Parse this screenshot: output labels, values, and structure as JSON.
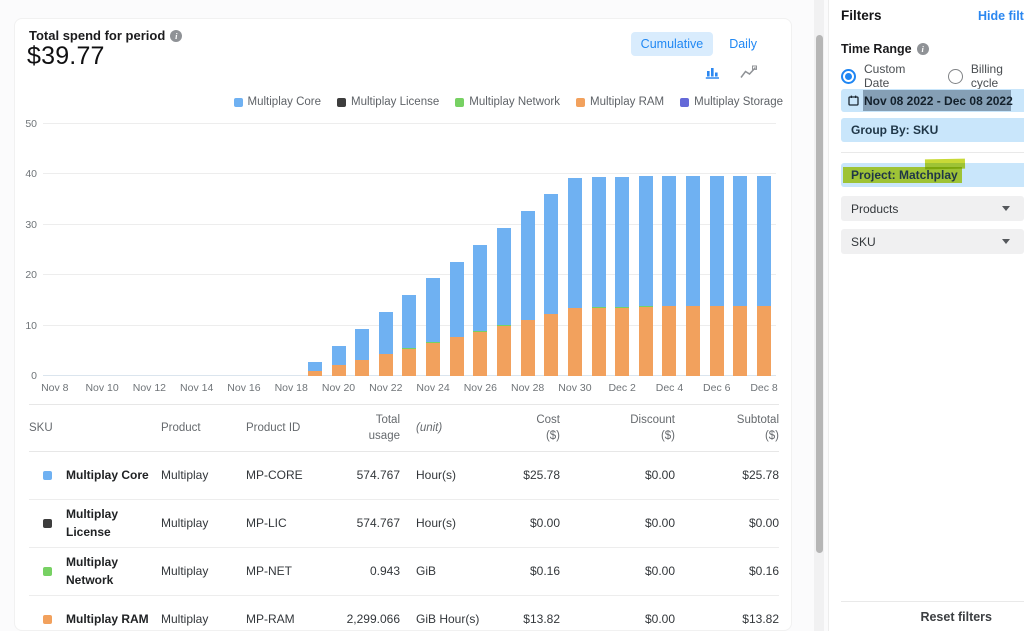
{
  "header": {
    "spend_label": "Total spend for period",
    "spend_value": "$39.77",
    "toggle_cumulative": "Cumulative",
    "toggle_daily": "Daily"
  },
  "colors": {
    "accent_blue": "#2b87f0",
    "chip_blue": "#c9e6fb",
    "toggle_bg": "#d9ecfd",
    "highlighter_yellow": "#c3d626",
    "selection_gray": "rgba(76,101,124,0.55)"
  },
  "chart_data": {
    "type": "bar",
    "stacked": true,
    "title": "",
    "xlabel": "",
    "ylabel": "",
    "grid": true,
    "legend_position": "top-right",
    "ylim": [
      0,
      50
    ],
    "yticks": [
      0,
      10,
      20,
      30,
      40,
      50
    ],
    "x_tick_every": 2,
    "x": [
      "Nov 8",
      "Nov 9",
      "Nov 10",
      "Nov 11",
      "Nov 12",
      "Nov 13",
      "Nov 14",
      "Nov 15",
      "Nov 16",
      "Nov 17",
      "Nov 18",
      "Nov 19",
      "Nov 20",
      "Nov 21",
      "Nov 22",
      "Nov 23",
      "Nov 24",
      "Nov 25",
      "Nov 26",
      "Nov 27",
      "Nov 28",
      "Nov 29",
      "Nov 30",
      "Dec 1",
      "Dec 2",
      "Dec 3",
      "Dec 4",
      "Dec 5",
      "Dec 6",
      "Dec 7",
      "Dec 8"
    ],
    "series": [
      {
        "name": "Multiplay Core",
        "color": "#6fb1f2",
        "values": [
          0,
          0,
          0,
          0,
          0,
          0,
          0,
          0,
          0,
          0,
          0,
          1.75,
          3.85,
          6.1,
          8.3,
          10.5,
          12.7,
          14.9,
          17.1,
          19.4,
          21.6,
          23.8,
          25.7,
          25.7,
          25.7,
          25.75,
          25.78,
          25.78,
          25.78,
          25.78,
          25.78
        ]
      },
      {
        "name": "Multiplay License",
        "color": "#3d3d3d",
        "values": [
          0,
          0,
          0,
          0,
          0,
          0,
          0,
          0,
          0,
          0,
          0,
          0,
          0,
          0,
          0,
          0,
          0,
          0,
          0,
          0,
          0,
          0,
          0,
          0,
          0,
          0,
          0,
          0,
          0,
          0,
          0
        ]
      },
      {
        "name": "Multiplay Network",
        "color": "#77d163",
        "values": [
          0,
          0,
          0,
          0,
          0,
          0,
          0,
          0,
          0,
          0,
          0,
          0.01,
          0.02,
          0.03,
          0.04,
          0.05,
          0.06,
          0.07,
          0.09,
          0.1,
          0.11,
          0.13,
          0.14,
          0.15,
          0.15,
          0.16,
          0.16,
          0.16,
          0.16,
          0.16,
          0.16
        ]
      },
      {
        "name": "Multiplay RAM",
        "color": "#f2a15d",
        "values": [
          0,
          0,
          0,
          0,
          0,
          0,
          0,
          0,
          0,
          0,
          0,
          1.0,
          2.1,
          3.2,
          4.35,
          5.45,
          6.6,
          7.7,
          8.8,
          9.95,
          11.1,
          12.25,
          13.4,
          13.55,
          13.55,
          13.78,
          13.82,
          13.82,
          13.82,
          13.82,
          13.82
        ]
      },
      {
        "name": "Multiplay Storage",
        "color": "#6469d8",
        "values": [
          0,
          0,
          0,
          0,
          0,
          0,
          0,
          0,
          0,
          0,
          0,
          0,
          0,
          0,
          0,
          0,
          0,
          0,
          0,
          0,
          0,
          0,
          0,
          0,
          0,
          0,
          0,
          0,
          0,
          0,
          0
        ]
      }
    ]
  },
  "table": {
    "columns": [
      {
        "label": "SKU",
        "align": "left",
        "italic": false
      },
      {
        "label": "Product",
        "align": "left",
        "italic": false
      },
      {
        "label": "Product ID",
        "align": "left",
        "italic": false
      },
      {
        "label": "Total\nusage",
        "align": "right",
        "italic": false
      },
      {
        "label": "(unit)",
        "align": "left",
        "italic": true
      },
      {
        "label": "Cost\n($)",
        "align": "right",
        "italic": false
      },
      {
        "label": "Discount\n($)",
        "align": "right",
        "italic": false
      },
      {
        "label": "Subtotal\n($)",
        "align": "right",
        "italic": false
      }
    ],
    "rows": [
      {
        "marker": "#6fb1f2",
        "sku": "Multiplay Core",
        "product": "Multiplay",
        "product_id": "MP-CORE",
        "usage": "574.767",
        "unit": "Hour(s)",
        "cost": "$25.78",
        "discount": "$0.00",
        "subtotal": "$25.78"
      },
      {
        "marker": "#3d3d3d",
        "sku": "Multiplay License",
        "product": "Multiplay",
        "product_id": "MP-LIC",
        "usage": "574.767",
        "unit": "Hour(s)",
        "cost": "$0.00",
        "discount": "$0.00",
        "subtotal": "$0.00"
      },
      {
        "marker": "#77d163",
        "sku": "Multiplay Network",
        "product": "Multiplay",
        "product_id": "MP-NET",
        "usage": "0.943",
        "unit": "GiB",
        "cost": "$0.16",
        "discount": "$0.00",
        "subtotal": "$0.16"
      },
      {
        "marker": "#f2a15d",
        "sku": "Multiplay RAM",
        "product": "Multiplay",
        "product_id": "MP-RAM",
        "usage": "2,299.066",
        "unit": "GiB Hour(s)",
        "cost": "$13.82",
        "discount": "$0.00",
        "subtotal": "$13.82"
      }
    ]
  },
  "filters": {
    "title": "Filters",
    "hide_link": "Hide filters",
    "time_range_label": "Time Range",
    "radio_custom": "Custom Date",
    "radio_billing": "Billing cycle",
    "date_range": "Nov 08 2022 - Dec 08 2022",
    "group_by": "Group By: SKU",
    "project": "Project: Matchplay",
    "products": "Products",
    "sku": "SKU",
    "reset_label": "Reset filters"
  }
}
